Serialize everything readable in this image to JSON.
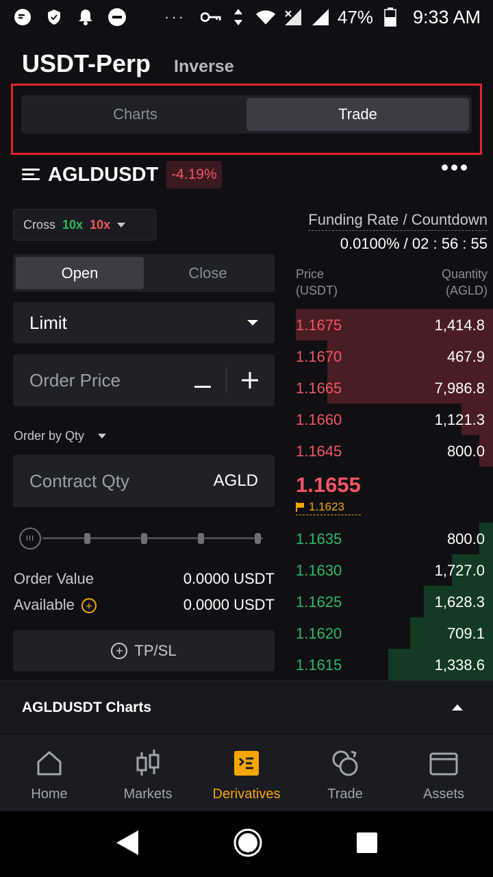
{
  "status_bar": {
    "battery": "47%",
    "time": "9:33 AM",
    "overflow": "···"
  },
  "header": {
    "title": "USDT-Perp",
    "subtitle": "Inverse"
  },
  "view_tabs": [
    "Charts",
    "Trade"
  ],
  "symbol": {
    "name": "AGLDUSDT",
    "change": "-4.19%"
  },
  "leverage": {
    "mode": "Cross",
    "long": "10x",
    "short": "10x"
  },
  "order_side_tabs": [
    "Open",
    "Close"
  ],
  "order_type": "Limit",
  "order_price_placeholder": "Order Price",
  "order_by": "Order by Qty",
  "contract_qty": {
    "placeholder": "Contract Qty",
    "unit": "AGLD"
  },
  "order_value": {
    "label": "Order Value",
    "value": "0.0000 USDT"
  },
  "available": {
    "label": "Available",
    "value": "0.0000 USDT"
  },
  "tpsl_label": "TP/SL",
  "funding": {
    "label": "Funding Rate / Countdown",
    "value": "0.0100% / 02 : 56 : 55"
  },
  "orderbook": {
    "price_header": [
      "Price",
      "(USDT)"
    ],
    "qty_header": [
      "Quantity",
      "(AGLD)"
    ],
    "asks": [
      {
        "price": "1.1675",
        "qty": "1,414.8",
        "depth": 1.0
      },
      {
        "price": "1.1670",
        "qty": "467.9",
        "depth": 0.84
      },
      {
        "price": "1.1665",
        "qty": "7,986.8",
        "depth": 0.84
      },
      {
        "price": "1.1660",
        "qty": "1,121.3",
        "depth": 0.16
      },
      {
        "price": "1.1645",
        "qty": "800.0",
        "depth": 0.07
      }
    ],
    "last_price": "1.1655",
    "mark_price": "1.1623",
    "bids": [
      {
        "price": "1.1635",
        "qty": "800.0",
        "depth": 0.07
      },
      {
        "price": "1.1630",
        "qty": "1,727.0",
        "depth": 0.21
      },
      {
        "price": "1.1625",
        "qty": "1,628.3",
        "depth": 0.35
      },
      {
        "price": "1.1620",
        "qty": "709.1",
        "depth": 0.42
      },
      {
        "price": "1.1615",
        "qty": "1,338.6",
        "depth": 0.53
      }
    ]
  },
  "charts_bar": {
    "label": "AGLDUSDT Charts"
  },
  "bottom_nav": [
    {
      "label": "Home",
      "icon": "home-icon"
    },
    {
      "label": "Markets",
      "icon": "candlestick-icon"
    },
    {
      "label": "Derivatives",
      "icon": "derivatives-icon",
      "active": true
    },
    {
      "label": "Trade",
      "icon": "trade-icon"
    },
    {
      "label": "Assets",
      "icon": "wallet-icon"
    }
  ],
  "colors": {
    "accent": "#f7a600",
    "up": "#2db866",
    "down": "#f25563",
    "highlight": "#e3232e"
  }
}
